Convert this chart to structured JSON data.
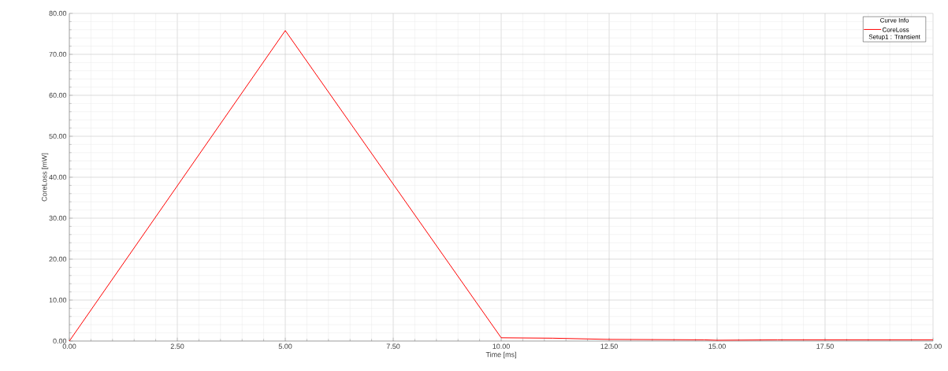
{
  "chart_data": {
    "type": "line",
    "xlabel": "Time [ms]",
    "ylabel": "CoreLoss [mW]",
    "legend_title": "Curve Info",
    "annotations": [
      "Setup1 : Transient"
    ],
    "x": [
      0,
      5,
      10,
      11.2,
      12.5,
      14.7,
      15,
      16.4,
      20
    ],
    "series": [
      {
        "name": "CoreLoss",
        "color": "#ff0000",
        "values": [
          0,
          75.8,
          0.8,
          0.7,
          0.4,
          0.3,
          0.2,
          0.3,
          0.3
        ]
      }
    ],
    "xlim": [
      0,
      20
    ],
    "ylim": [
      0,
      80
    ],
    "xticks": [
      {
        "value": 0,
        "label": "0.00"
      },
      {
        "value": 2.5,
        "label": "2.50"
      },
      {
        "value": 5,
        "label": "5.00"
      },
      {
        "value": 7.5,
        "label": "7.50"
      },
      {
        "value": 10,
        "label": "10.00"
      },
      {
        "value": 12.5,
        "label": "12.50"
      },
      {
        "value": 15,
        "label": "15.00"
      },
      {
        "value": 17.5,
        "label": "17.50"
      },
      {
        "value": 20,
        "label": "20.00"
      }
    ],
    "yticks": [
      {
        "value": 0,
        "label": "0.00"
      },
      {
        "value": 10,
        "label": "10.00"
      },
      {
        "value": 20,
        "label": "20.00"
      },
      {
        "value": 30,
        "label": "30.00"
      },
      {
        "value": 40,
        "label": "40.00"
      },
      {
        "value": 50,
        "label": "50.00"
      },
      {
        "value": 60,
        "label": "60.00"
      },
      {
        "value": 70,
        "label": "70.00"
      },
      {
        "value": 80,
        "label": "80.00"
      }
    ],
    "grid": true,
    "legend": "top right",
    "marker": "none",
    "line_style": "solid"
  }
}
